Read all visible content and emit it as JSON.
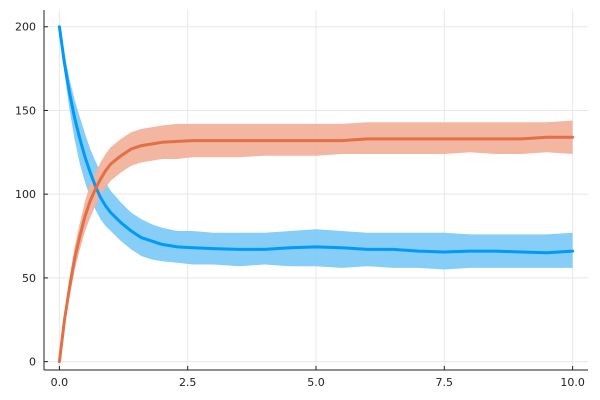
{
  "chart_data": {
    "type": "line",
    "title": "",
    "xlabel": "",
    "ylabel": "",
    "xlim": [
      -0.3,
      10.3
    ],
    "ylim": [
      -5,
      210
    ],
    "grid": true,
    "legend": "none",
    "xticks": [
      0,
      2.5,
      5,
      7.5,
      10
    ],
    "xtick_labels": [
      "0.0",
      "2.5",
      "5.0",
      "7.5",
      "10.0"
    ],
    "yticks": [
      0,
      50,
      100,
      150,
      200
    ],
    "ytick_labels": [
      "0",
      "50",
      "100",
      "150",
      "200"
    ],
    "x": [
      0,
      0.1,
      0.2,
      0.3,
      0.4,
      0.5,
      0.6,
      0.7,
      0.8,
      0.9,
      1.0,
      1.2,
      1.4,
      1.6,
      1.8,
      2.0,
      2.3,
      2.6,
      3.0,
      3.5,
      4.0,
      4.5,
      5.0,
      5.5,
      6.0,
      6.5,
      7.0,
      7.5,
      8.0,
      8.5,
      9.0,
      9.5,
      10.0
    ],
    "series": [
      {
        "name": "series-1",
        "color": "#009af9",
        "band_color": "#7fcaf8",
        "values": [
          200,
          178,
          160,
          145,
          133,
          122,
          113,
          105,
          98,
          93,
          89,
          83,
          78,
          74,
          72,
          70,
          68.5,
          68,
          67.5,
          67,
          67,
          68,
          68.5,
          68,
          67,
          67,
          66,
          65.5,
          66,
          66,
          65.5,
          65,
          66
        ],
        "lower": [
          200,
          172,
          150,
          132,
          118,
          107,
          98,
          91,
          85,
          81,
          78,
          72,
          67,
          63,
          61,
          60,
          59,
          58,
          58,
          57,
          58,
          57,
          57,
          56,
          57,
          56,
          56,
          55,
          56,
          56,
          56,
          56,
          56
        ],
        "upper": [
          200,
          184,
          168,
          156,
          146,
          136,
          127,
          120,
          113,
          107,
          102,
          95,
          89,
          85,
          82,
          80,
          78,
          78,
          77,
          77,
          77,
          78,
          79,
          78,
          77,
          77,
          77,
          77,
          76,
          76,
          76,
          76,
          77
        ]
      },
      {
        "name": "series-2",
        "color": "#e26f46",
        "band_color": "#f2b29c",
        "values": [
          0,
          25,
          45,
          62,
          75,
          87,
          96,
          103,
          109,
          114,
          118,
          123,
          127,
          129,
          130,
          131,
          131.5,
          132,
          132,
          132,
          132,
          132,
          132,
          132,
          133,
          133,
          133,
          133,
          133,
          133,
          133,
          134,
          134
        ],
        "lower": [
          0,
          21,
          39,
          55,
          67,
          78,
          86,
          93,
          99,
          104,
          108,
          113,
          117,
          119,
          120,
          121,
          121,
          122,
          122,
          122,
          123,
          123,
          123,
          124,
          124,
          124,
          124,
          124,
          125,
          124,
          124,
          125,
          124
        ],
        "upper": [
          0,
          29,
          51,
          69,
          83,
          96,
          106,
          113,
          119,
          124,
          128,
          133,
          137,
          139,
          140,
          141,
          142,
          142,
          142,
          142,
          142,
          142,
          142,
          142,
          143,
          143,
          143,
          143,
          143,
          143,
          143,
          143,
          144
        ]
      }
    ]
  }
}
